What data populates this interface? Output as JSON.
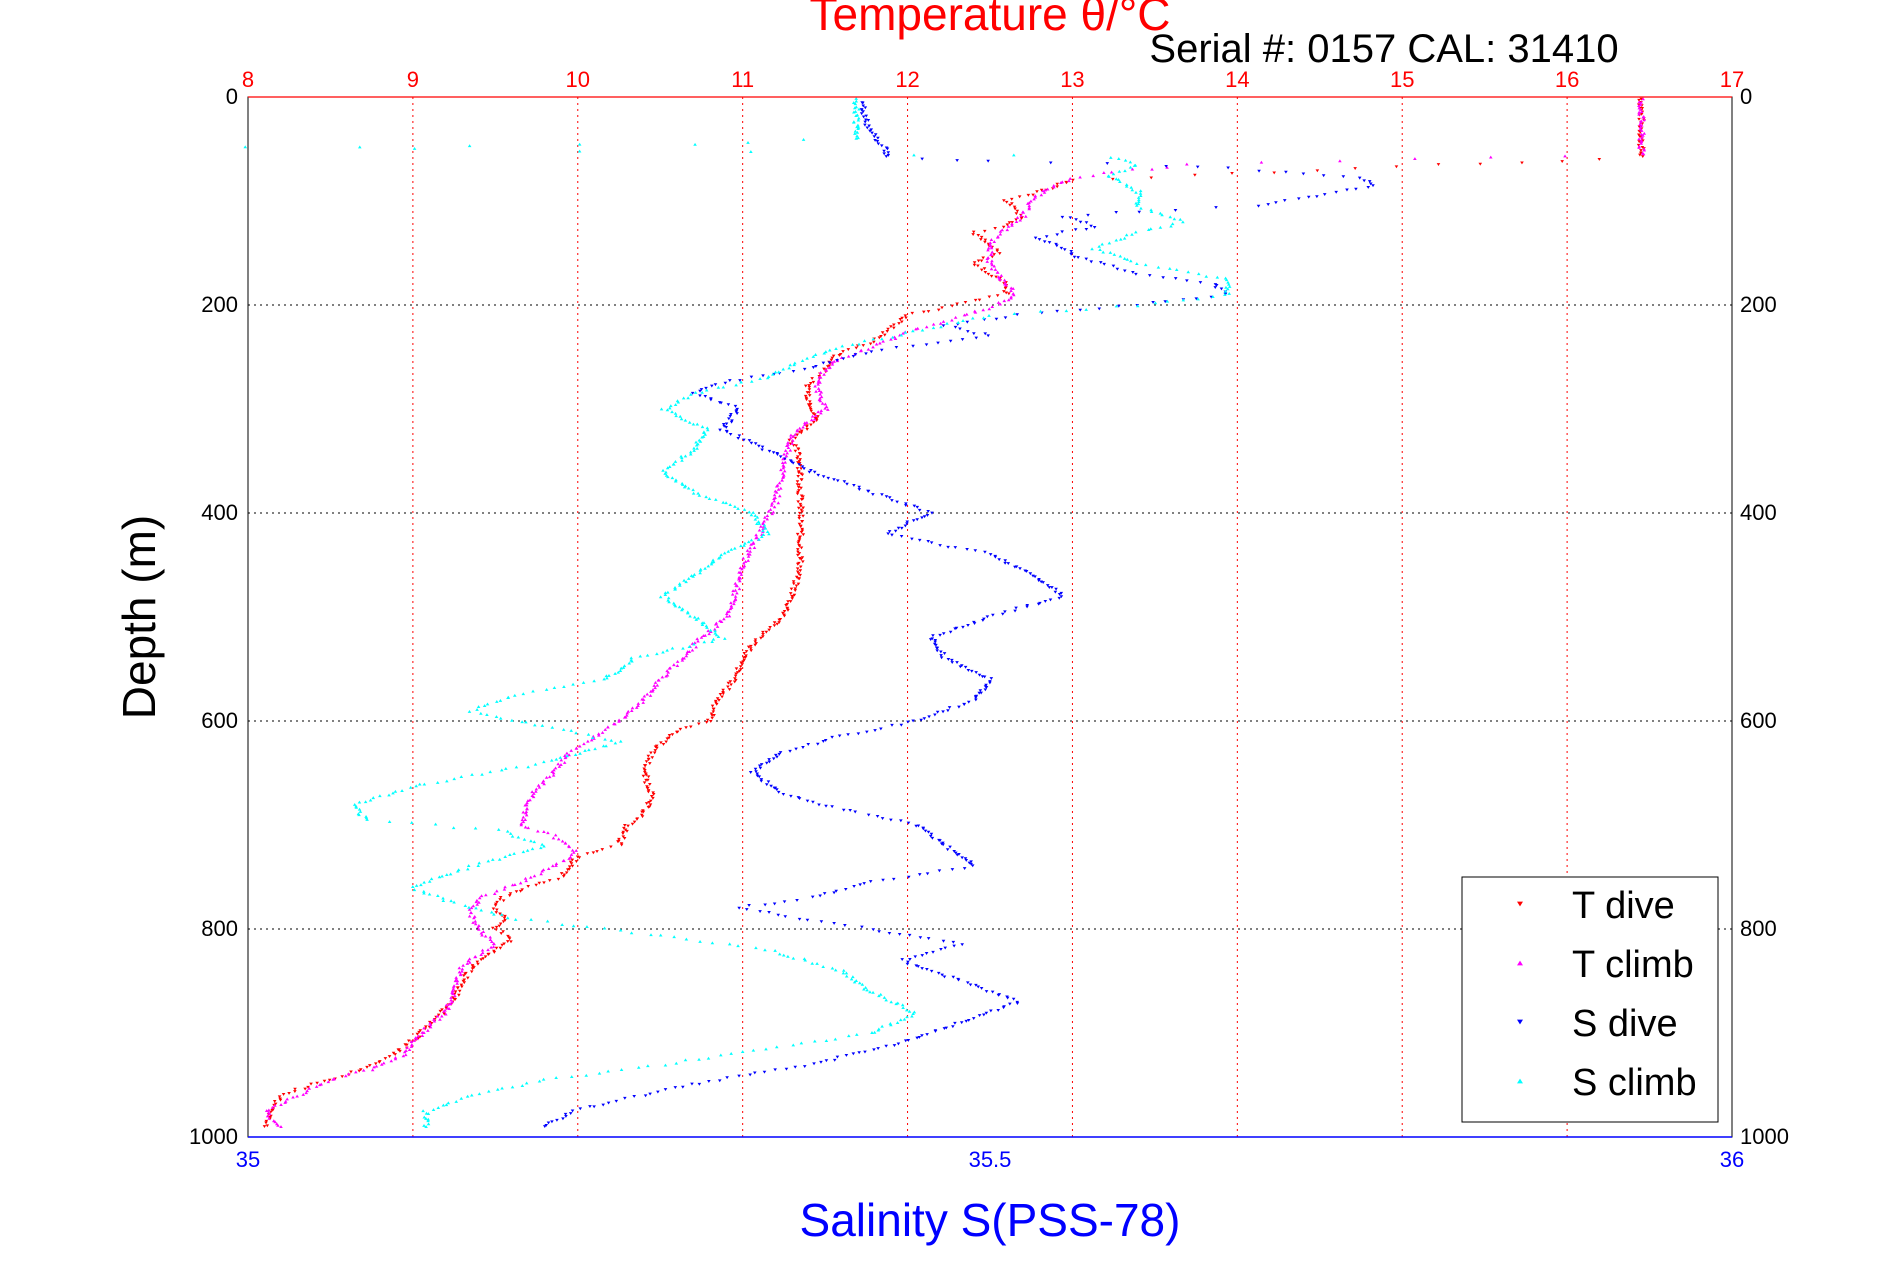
{
  "chart_data": {
    "type": "scatter",
    "title": "Temperature θ/°C",
    "subtitle": "Serial #: 0157 CAL: 31410",
    "ylabel": "Depth (m)",
    "xlabel_bottom": "Salinity S(PSS-78)",
    "xlabel_top": "Temperature θ/°C",
    "ylim": [
      0,
      1000
    ],
    "y_reversed": true,
    "x_top_lim": [
      8,
      17
    ],
    "x_bottom_lim": [
      35,
      36
    ],
    "y_ticks": [
      "0",
      "200",
      "400",
      "600",
      "800",
      "1000"
    ],
    "x_top_ticks": [
      "8",
      "9",
      "10",
      "11",
      "12",
      "13",
      "14",
      "15",
      "16",
      "17"
    ],
    "x_bottom_ticks": [
      "35",
      "35.5",
      "36"
    ],
    "grid": true,
    "legend_position": "bottom-right",
    "colors": {
      "temperature_axis": "#ff0000",
      "salinity_axis": "#0000ff",
      "grid": "#ff0000"
    },
    "series": [
      {
        "name": "T dive",
        "axis": "temperature",
        "marker": "triangle-down",
        "color": "#ff0000",
        "points": [
          [
            16.45,
            2
          ],
          [
            16.45,
            20
          ],
          [
            16.45,
            45
          ],
          [
            16.45,
            58
          ],
          [
            13.0,
            80
          ],
          [
            12.8,
            92
          ],
          [
            12.6,
            100
          ],
          [
            12.7,
            115
          ],
          [
            12.6,
            125
          ],
          [
            12.4,
            130
          ],
          [
            12.55,
            150
          ],
          [
            12.4,
            160
          ],
          [
            12.5,
            170
          ],
          [
            12.6,
            180
          ],
          [
            12.6,
            190
          ],
          [
            12.35,
            198
          ],
          [
            12.0,
            210
          ],
          [
            11.9,
            222
          ],
          [
            11.8,
            235
          ],
          [
            11.7,
            240
          ],
          [
            11.55,
            250
          ],
          [
            11.5,
            265
          ],
          [
            11.4,
            275
          ],
          [
            11.4,
            290
          ],
          [
            11.45,
            310
          ],
          [
            11.3,
            330
          ],
          [
            11.35,
            350
          ],
          [
            11.35,
            380
          ],
          [
            11.35,
            420
          ],
          [
            11.35,
            450
          ],
          [
            11.3,
            480
          ],
          [
            11.25,
            500
          ],
          [
            11.1,
            520
          ],
          [
            11.0,
            540
          ],
          [
            10.95,
            560
          ],
          [
            10.85,
            580
          ],
          [
            10.8,
            600
          ],
          [
            10.6,
            610
          ],
          [
            10.45,
            630
          ],
          [
            10.4,
            650
          ],
          [
            10.45,
            670
          ],
          [
            10.4,
            690
          ],
          [
            10.3,
            700
          ],
          [
            10.25,
            720
          ],
          [
            10.0,
            730
          ],
          [
            9.9,
            750
          ],
          [
            9.7,
            760
          ],
          [
            9.55,
            770
          ],
          [
            9.5,
            780
          ],
          [
            9.55,
            790
          ],
          [
            9.5,
            800
          ],
          [
            9.6,
            810
          ],
          [
            9.4,
            830
          ],
          [
            9.3,
            850
          ],
          [
            9.25,
            870
          ],
          [
            9.15,
            885
          ],
          [
            9.05,
            900
          ],
          [
            8.9,
            920
          ],
          [
            8.7,
            935
          ],
          [
            8.5,
            945
          ],
          [
            8.2,
            960
          ],
          [
            8.15,
            975
          ],
          [
            8.1,
            990
          ]
        ]
      },
      {
        "name": "T climb",
        "axis": "temperature",
        "marker": "triangle-up",
        "color": "#ff00ff",
        "points": [
          [
            16.45,
            2
          ],
          [
            16.45,
            20
          ],
          [
            16.45,
            45
          ],
          [
            16.45,
            55
          ],
          [
            13.7,
            65
          ],
          [
            13.25,
            72
          ],
          [
            13.0,
            78
          ],
          [
            12.85,
            88
          ],
          [
            12.75,
            100
          ],
          [
            12.7,
            115
          ],
          [
            12.6,
            125
          ],
          [
            12.5,
            140
          ],
          [
            12.5,
            160
          ],
          [
            12.6,
            180
          ],
          [
            12.65,
            190
          ],
          [
            12.55,
            200
          ],
          [
            12.3,
            212
          ],
          [
            12.0,
            225
          ],
          [
            11.8,
            240
          ],
          [
            11.6,
            250
          ],
          [
            11.5,
            262
          ],
          [
            11.45,
            280
          ],
          [
            11.5,
            300
          ],
          [
            11.3,
            325
          ],
          [
            11.25,
            355
          ],
          [
            11.2,
            390
          ],
          [
            11.1,
            420
          ],
          [
            11.0,
            450
          ],
          [
            10.95,
            480
          ],
          [
            10.9,
            500
          ],
          [
            10.75,
            520
          ],
          [
            10.6,
            545
          ],
          [
            10.5,
            560
          ],
          [
            10.4,
            580
          ],
          [
            10.25,
            600
          ],
          [
            10.1,
            615
          ],
          [
            9.95,
            630
          ],
          [
            9.85,
            650
          ],
          [
            9.75,
            665
          ],
          [
            9.7,
            680
          ],
          [
            9.65,
            700
          ],
          [
            9.85,
            710
          ],
          [
            10.0,
            725
          ],
          [
            9.85,
            740
          ],
          [
            9.65,
            755
          ],
          [
            9.4,
            770
          ],
          [
            9.35,
            785
          ],
          [
            9.4,
            800
          ],
          [
            9.5,
            815
          ],
          [
            9.3,
            835
          ],
          [
            9.25,
            860
          ],
          [
            9.2,
            880
          ],
          [
            9.05,
            900
          ],
          [
            8.95,
            920
          ],
          [
            8.75,
            935
          ],
          [
            8.5,
            945
          ],
          [
            8.3,
            960
          ],
          [
            8.1,
            975
          ],
          [
            8.2,
            990
          ]
        ]
      },
      {
        "name": "S dive",
        "axis": "salinity",
        "marker": "triangle-down",
        "color": "#0000ff",
        "points": [
          [
            35.415,
            5
          ],
          [
            35.415,
            20
          ],
          [
            35.42,
            35
          ],
          [
            35.43,
            50
          ],
          [
            35.43,
            58
          ],
          [
            35.5,
            62
          ],
          [
            35.62,
            66
          ],
          [
            35.7,
            72
          ],
          [
            35.75,
            78
          ],
          [
            35.76,
            85
          ],
          [
            35.72,
            95
          ],
          [
            35.68,
            105
          ],
          [
            35.6,
            110
          ],
          [
            35.55,
            115
          ],
          [
            35.57,
            125
          ],
          [
            35.53,
            135
          ],
          [
            35.55,
            145
          ],
          [
            35.56,
            155
          ],
          [
            35.6,
            170
          ],
          [
            35.65,
            180
          ],
          [
            35.66,
            190
          ],
          [
            35.6,
            200
          ],
          [
            35.52,
            210
          ],
          [
            35.47,
            220
          ],
          [
            35.5,
            230
          ],
          [
            35.42,
            245
          ],
          [
            35.38,
            260
          ],
          [
            35.32,
            275
          ],
          [
            35.3,
            285
          ],
          [
            35.33,
            300
          ],
          [
            35.32,
            320
          ],
          [
            35.35,
            340
          ],
          [
            35.38,
            360
          ],
          [
            35.42,
            380
          ],
          [
            35.46,
            400
          ],
          [
            35.43,
            420
          ],
          [
            35.5,
            440
          ],
          [
            35.53,
            460
          ],
          [
            35.55,
            480
          ],
          [
            35.5,
            500
          ],
          [
            35.46,
            520
          ],
          [
            35.47,
            540
          ],
          [
            35.5,
            560
          ],
          [
            35.49,
            580
          ],
          [
            35.45,
            600
          ],
          [
            35.4,
            615
          ],
          [
            35.36,
            630
          ],
          [
            35.34,
            650
          ],
          [
            35.36,
            670
          ],
          [
            35.4,
            685
          ],
          [
            35.45,
            700
          ],
          [
            35.47,
            720
          ],
          [
            35.49,
            740
          ],
          [
            35.42,
            755
          ],
          [
            35.38,
            770
          ],
          [
            35.33,
            780
          ],
          [
            35.37,
            790
          ],
          [
            35.42,
            800
          ],
          [
            35.48,
            815
          ],
          [
            35.44,
            830
          ],
          [
            35.48,
            850
          ],
          [
            35.52,
            870
          ],
          [
            35.48,
            890
          ],
          [
            35.44,
            910
          ],
          [
            35.38,
            930
          ],
          [
            35.3,
            950
          ],
          [
            35.25,
            965
          ],
          [
            35.22,
            975
          ],
          [
            35.2,
            990
          ]
        ]
      },
      {
        "name": "S climb",
        "axis": "salinity",
        "marker": "triangle-up",
        "color": "#00ffff",
        "points": [
          [
            35.41,
            2
          ],
          [
            35.41,
            20
          ],
          [
            35.41,
            40
          ],
          [
            35.3,
            45
          ],
          [
            35.15,
            47
          ],
          [
            35.0,
            48
          ],
          [
            35.45,
            55
          ],
          [
            35.58,
            58
          ],
          [
            35.6,
            65
          ],
          [
            35.58,
            75
          ],
          [
            35.6,
            90
          ],
          [
            35.6,
            105
          ],
          [
            35.63,
            120
          ],
          [
            35.6,
            130
          ],
          [
            35.57,
            145
          ],
          [
            35.6,
            160
          ],
          [
            35.66,
            175
          ],
          [
            35.66,
            190
          ],
          [
            35.6,
            200
          ],
          [
            35.5,
            210
          ],
          [
            35.45,
            225
          ],
          [
            35.4,
            240
          ],
          [
            35.37,
            255
          ],
          [
            35.35,
            270
          ],
          [
            35.3,
            285
          ],
          [
            35.28,
            300
          ],
          [
            35.31,
            320
          ],
          [
            35.3,
            340
          ],
          [
            35.28,
            360
          ],
          [
            35.3,
            380
          ],
          [
            35.34,
            400
          ],
          [
            35.35,
            420
          ],
          [
            35.32,
            440
          ],
          [
            35.3,
            460
          ],
          [
            35.28,
            480
          ],
          [
            35.3,
            500
          ],
          [
            35.32,
            520
          ],
          [
            35.26,
            540
          ],
          [
            35.24,
            560
          ],
          [
            35.18,
            575
          ],
          [
            35.15,
            590
          ],
          [
            35.2,
            605
          ],
          [
            35.25,
            620
          ],
          [
            35.2,
            640
          ],
          [
            35.12,
            660
          ],
          [
            35.07,
            680
          ],
          [
            35.08,
            695
          ],
          [
            35.17,
            705
          ],
          [
            35.2,
            720
          ],
          [
            35.15,
            740
          ],
          [
            35.11,
            760
          ],
          [
            35.14,
            775
          ],
          [
            35.18,
            790
          ],
          [
            35.27,
            805
          ],
          [
            35.35,
            820
          ],
          [
            35.4,
            840
          ],
          [
            35.42,
            860
          ],
          [
            35.45,
            880
          ],
          [
            35.42,
            900
          ],
          [
            35.35,
            915
          ],
          [
            35.28,
            930
          ],
          [
            35.2,
            945
          ],
          [
            35.15,
            960
          ],
          [
            35.12,
            975
          ],
          [
            35.12,
            990
          ]
        ]
      }
    ]
  }
}
